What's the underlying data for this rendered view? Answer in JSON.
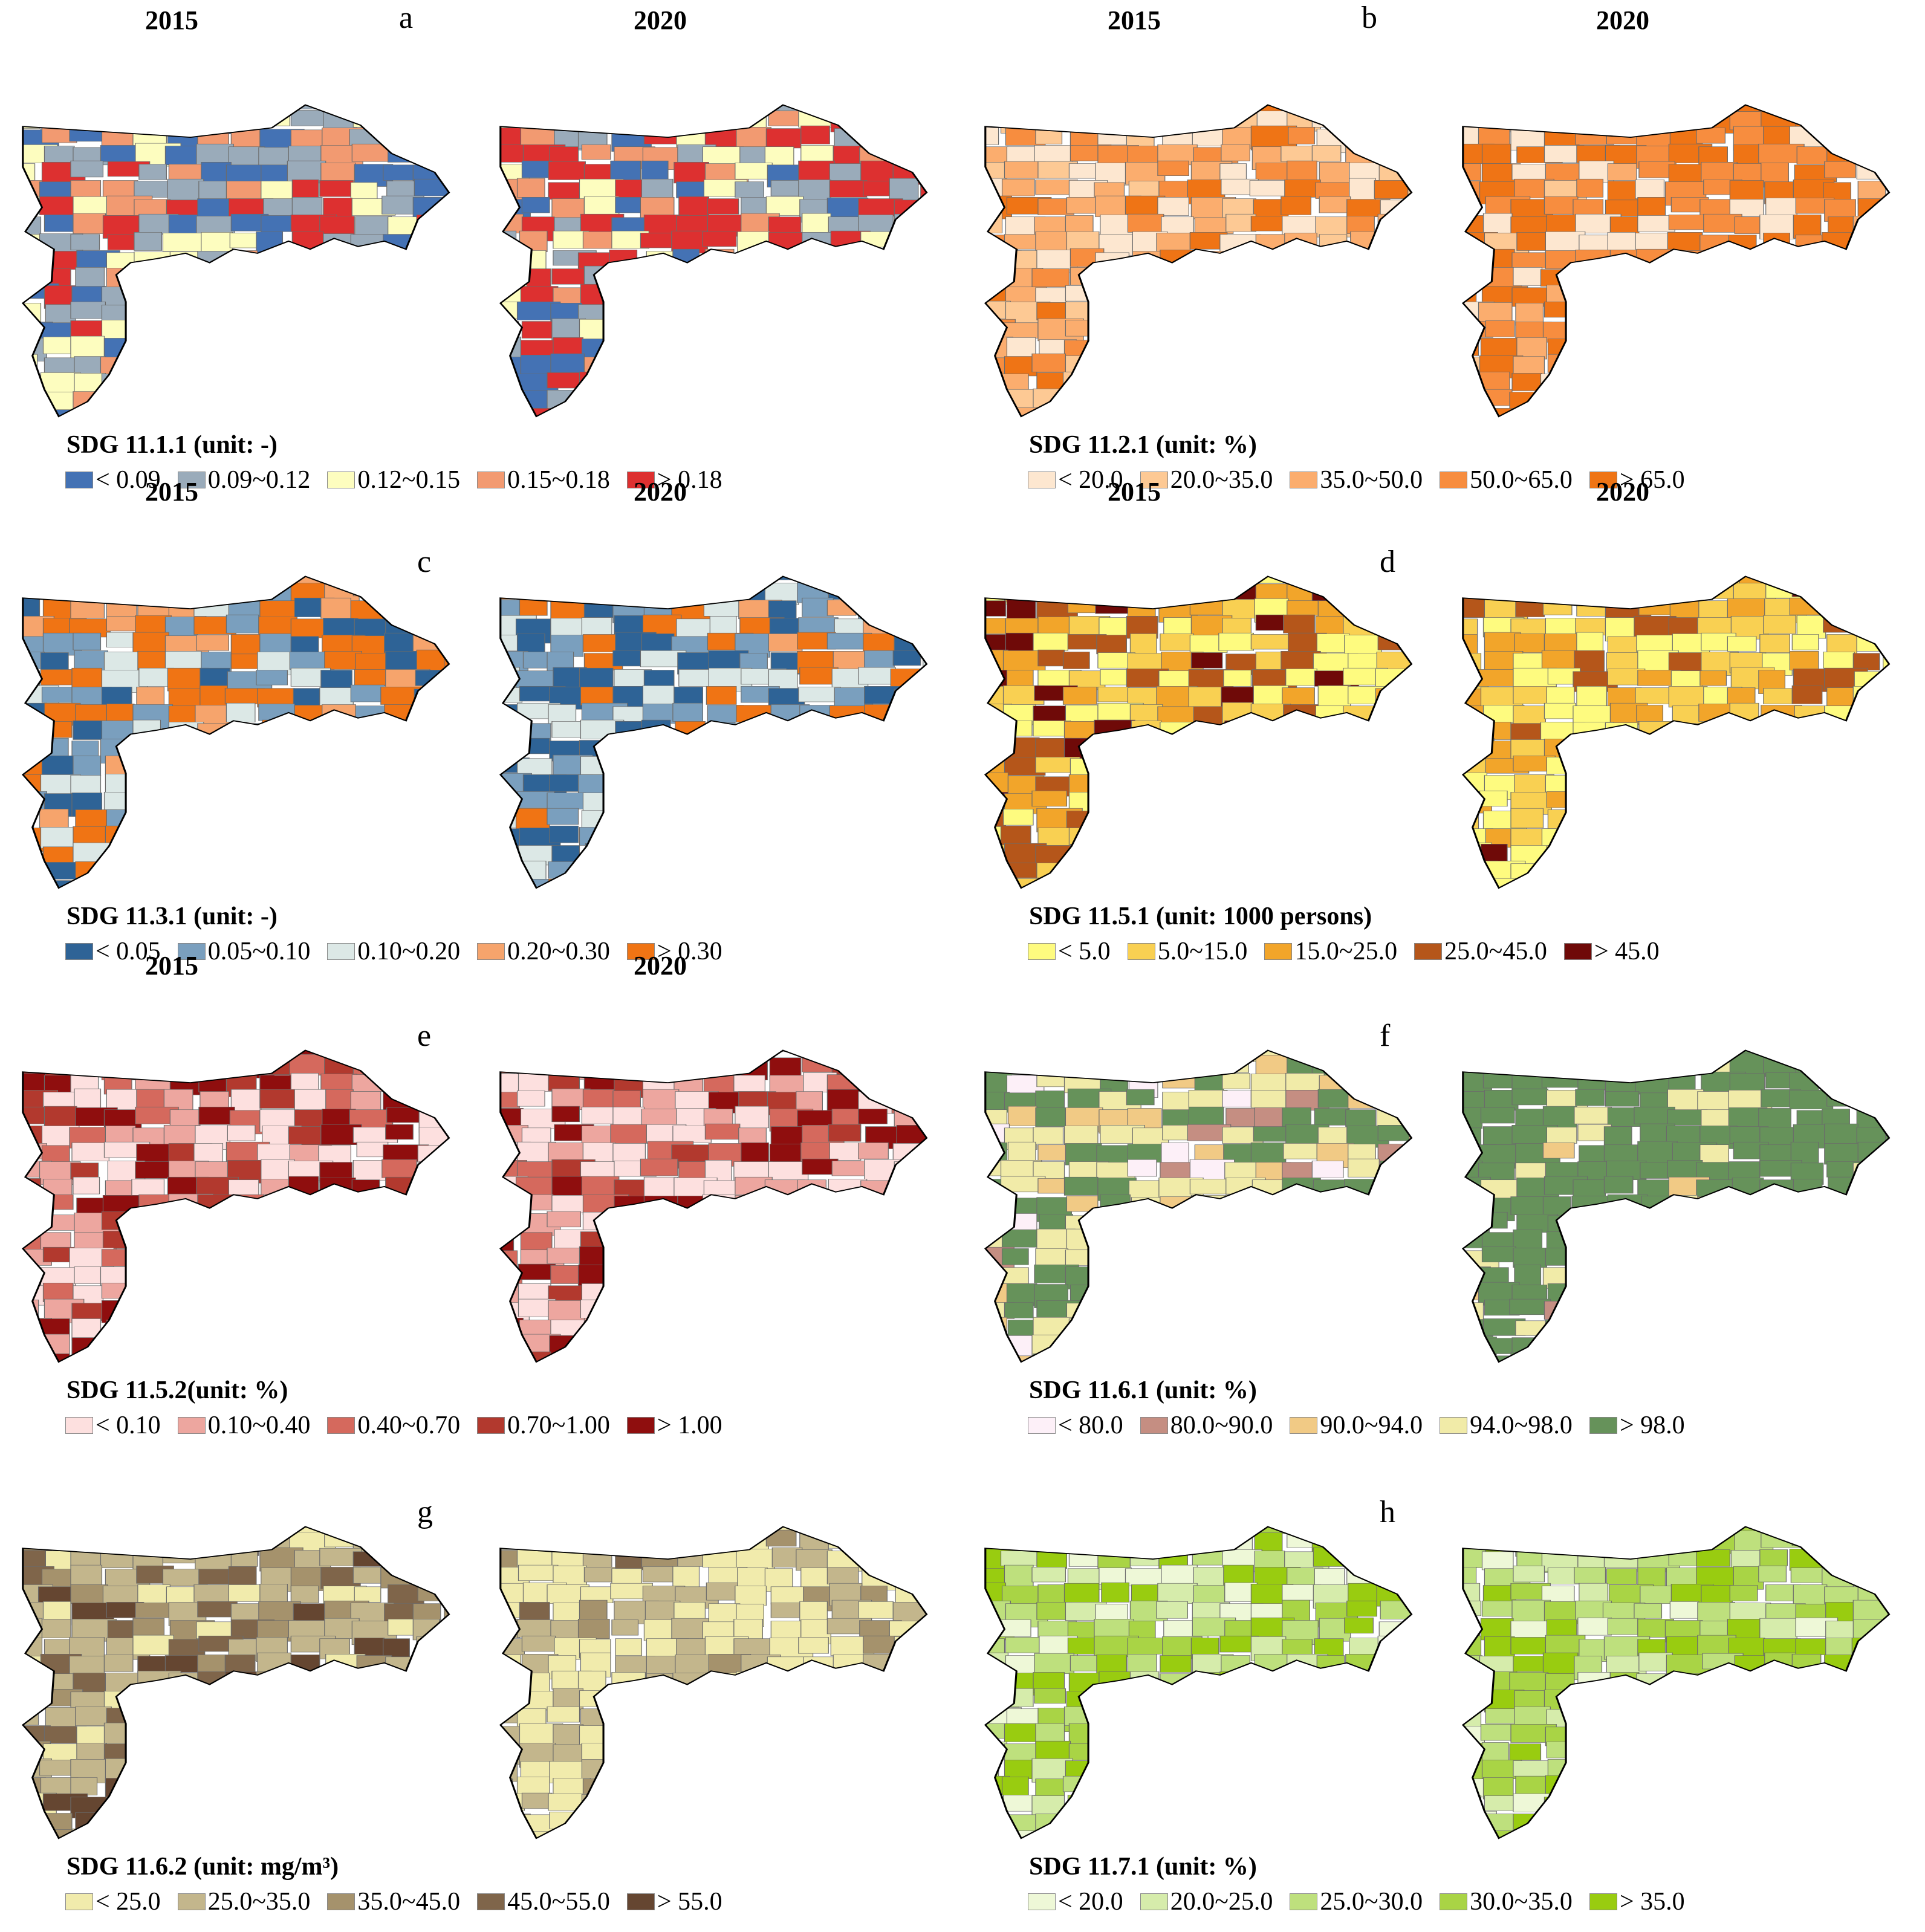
{
  "panels": [
    {
      "letter": "a",
      "year_left": "2015",
      "year_right": "2020",
      "title": "SDG 11.1.1  (unit: -)",
      "classes": [
        {
          "label": "< 0.09",
          "color": "#4472b4"
        },
        {
          "label": "0.09~0.12",
          "color": "#9aabba"
        },
        {
          "label": "0.12~0.15",
          "color": "#fdfdbf"
        },
        {
          "label": "0.15~0.18",
          "color": "#f29a71"
        },
        {
          "label": "> 0.18",
          "color": "#dd3030"
        }
      ],
      "left_weights": [
        0.22,
        0.24,
        0.22,
        0.17,
        0.15
      ],
      "right_weights": [
        0.16,
        0.18,
        0.16,
        0.14,
        0.36
      ]
    },
    {
      "letter": "b",
      "year_left": "2015",
      "year_right": "2020",
      "title": "SDG 11.2.1 (unit: %)",
      "classes": [
        {
          "label": "< 20.0",
          "color": "#fde7d0"
        },
        {
          "label": "20.0~35.0",
          "color": "#fdc994"
        },
        {
          "label": "35.0~50.0",
          "color": "#fbad6e"
        },
        {
          "label": "50.0~65.0",
          "color": "#f78d3f"
        },
        {
          "label": "> 65.0",
          "color": "#ef7415"
        }
      ],
      "left_weights": [
        0.22,
        0.22,
        0.22,
        0.2,
        0.14
      ],
      "right_weights": [
        0.1,
        0.02,
        0.04,
        0.4,
        0.44
      ]
    },
    {
      "letter": "c",
      "year_left": "2015",
      "year_right": "2020",
      "title": "SDG 11.3.1 (unit: -)",
      "classes": [
        {
          "label": "< 0.05",
          "color": "#2e6396"
        },
        {
          "label": "0.05~0.10",
          "color": "#7a9fbe"
        },
        {
          "label": "0.10~0.20",
          "color": "#dce8e6"
        },
        {
          "label": "0.20~0.30",
          "color": "#f6a46c"
        },
        {
          "label": "> 0.30",
          "color": "#f07414"
        }
      ],
      "left_weights": [
        0.14,
        0.16,
        0.2,
        0.14,
        0.36
      ],
      "right_weights": [
        0.3,
        0.26,
        0.22,
        0.06,
        0.16
      ]
    },
    {
      "letter": "d",
      "year_left": "2015",
      "year_right": "2020",
      "title": "SDG 11.5.1 (unit: 1000 persons)",
      "classes": [
        {
          "label": "< 5.0",
          "color": "#fefb7f"
        },
        {
          "label": "5.0~15.0",
          "color": "#f9d052"
        },
        {
          "label": "15.0~25.0",
          "color": "#f2a52a"
        },
        {
          "label": "25.0~45.0",
          "color": "#b5561a"
        },
        {
          "label": "> 45.0",
          "color": "#6f0a08"
        }
      ],
      "left_weights": [
        0.22,
        0.24,
        0.24,
        0.18,
        0.12
      ],
      "right_weights": [
        0.26,
        0.3,
        0.26,
        0.14,
        0.04
      ]
    },
    {
      "letter": "e",
      "year_left": "2015",
      "year_right": "2020",
      "title": "SDG 11.5.2(unit: %)",
      "classes": [
        {
          "label": "< 0.10",
          "color": "#fde0df"
        },
        {
          "label": "0.10~0.40",
          "color": "#eda69f"
        },
        {
          "label": "0.40~0.70",
          "color": "#d5695d"
        },
        {
          "label": "0.70~1.00",
          "color": "#b2392e"
        },
        {
          "label": "> 1.00",
          "color": "#8f0e0e"
        }
      ],
      "left_weights": [
        0.22,
        0.2,
        0.16,
        0.2,
        0.22
      ],
      "right_weights": [
        0.24,
        0.22,
        0.2,
        0.1,
        0.24
      ]
    },
    {
      "letter": "f",
      "year_left": "",
      "year_right": "",
      "title": "SDG 11.6.1 (unit: %)",
      "classes": [
        {
          "label": "< 80.0",
          "color": "#fdf0f8"
        },
        {
          "label": "80.0~90.0",
          "color": "#c58e82"
        },
        {
          "label": "90.0~94.0",
          "color": "#f1ca85"
        },
        {
          "label": "94.0~98.0",
          "color": "#f1eba8"
        },
        {
          "label": "> 98.0",
          "color": "#66925a"
        }
      ],
      "left_weights": [
        0.1,
        0.06,
        0.12,
        0.42,
        0.3
      ],
      "right_weights": [
        0.0,
        0.01,
        0.02,
        0.12,
        0.85
      ]
    },
    {
      "letter": "g",
      "year_left": "",
      "year_right": "",
      "title": "SDG 11.6.2 (unit: mg/m³)",
      "classes": [
        {
          "label": "< 25.0",
          "color": "#f1ebac"
        },
        {
          "label": "25.0~35.0",
          "color": "#c3b68c"
        },
        {
          "label": "35.0~45.0",
          "color": "#a5926c"
        },
        {
          "label": "45.0~55.0",
          "color": "#7f654a"
        },
        {
          "label": "> 55.0",
          "color": "#654631"
        }
      ],
      "left_weights": [
        0.12,
        0.48,
        0.18,
        0.12,
        0.1
      ],
      "right_weights": [
        0.56,
        0.3,
        0.12,
        0.02,
        0.0
      ]
    },
    {
      "letter": "h",
      "year_left": "",
      "year_right": "",
      "title": "SDG 11.7.1 (unit: %)",
      "classes": [
        {
          "label": "< 20.0",
          "color": "#eef8d7"
        },
        {
          "label": "20.0~25.0",
          "color": "#d6ecab"
        },
        {
          "label": "25.0~30.0",
          "color": "#bee07d"
        },
        {
          "label": "30.0~35.0",
          "color": "#a9d445"
        },
        {
          "label": "> 35.0",
          "color": "#99cc10"
        }
      ],
      "left_weights": [
        0.16,
        0.22,
        0.2,
        0.16,
        0.26
      ],
      "right_weights": [
        0.1,
        0.18,
        0.22,
        0.3,
        0.2
      ]
    }
  ]
}
